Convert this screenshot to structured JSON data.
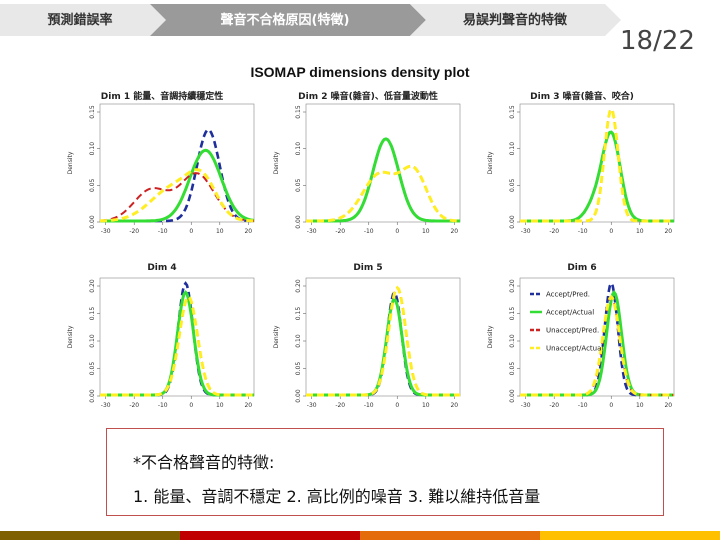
{
  "nav": {
    "steps": [
      {
        "label": "預測錯誤率",
        "fill": "#e8e8e8"
      },
      {
        "label": "聲音不合格原因(特徵)",
        "fill": "#9a9a9a"
      },
      {
        "label": "易誤判聲音的特徵",
        "fill": "#e8e8e8"
      }
    ]
  },
  "page_number": "18/22",
  "chart_data": {
    "type": "line",
    "title": "ISOMAP dimensions density plot",
    "ylabel": "Density",
    "legend": [
      "Accept/Pred.",
      "Accept/Actual",
      "Unaccept/Pred.",
      "Unaccept/Actual"
    ],
    "series_colors": [
      "#1f2f9c",
      "#33dd33",
      "#cc2222",
      "#ffee22"
    ],
    "panels": [
      {
        "title": "Dim 1 能量、音調持續穩定性",
        "xticks": [
          "-30",
          "-20",
          "-10",
          "0",
          "10",
          "20"
        ],
        "yticks": [
          "0.00",
          "0.05",
          "0.10",
          "0.15"
        ]
      },
      {
        "title": "Dim 2 噪音(雜音)、低音量波動性",
        "xticks": [
          "-30",
          "-20",
          "-10",
          "0",
          "10",
          "20"
        ],
        "yticks": [
          "0.00",
          "0.05",
          "0.10",
          "0.15"
        ]
      },
      {
        "title": "Dim 3 噪音(雜音、咬合)",
        "xticks": [
          "-30",
          "-20",
          "-10",
          "0",
          "10",
          "20"
        ],
        "yticks": [
          "0.00",
          "0.05",
          "0.10",
          "0.15"
        ]
      },
      {
        "title": "Dim 4",
        "xticks": [
          "-30",
          "-20",
          "-10",
          "0",
          "10",
          "20"
        ],
        "yticks": [
          "0.00",
          "0.05",
          "0.10",
          "0.15",
          "0.20"
        ]
      },
      {
        "title": "Dim 5",
        "xticks": [
          "-30",
          "-20",
          "-10",
          "0",
          "10",
          "20"
        ],
        "yticks": [
          "0.00",
          "0.05",
          "0.10",
          "0.15",
          "0.20"
        ]
      },
      {
        "title": "Dim 6",
        "xticks": [
          "-30",
          "-20",
          "-10",
          "0",
          "10",
          "20"
        ],
        "yticks": [
          "0.00",
          "0.05",
          "0.10",
          "0.15",
          "0.20"
        ]
      }
    ]
  },
  "note": {
    "heading": "*不合格聲音的特徵:",
    "items": "1. 能量、音調不穩定 2. 高比例的噪音 3. 難以維持低音量"
  },
  "bottom_bar_colors": [
    "#7f6000",
    "#c00000",
    "#e46c0a",
    "#ffc000"
  ]
}
